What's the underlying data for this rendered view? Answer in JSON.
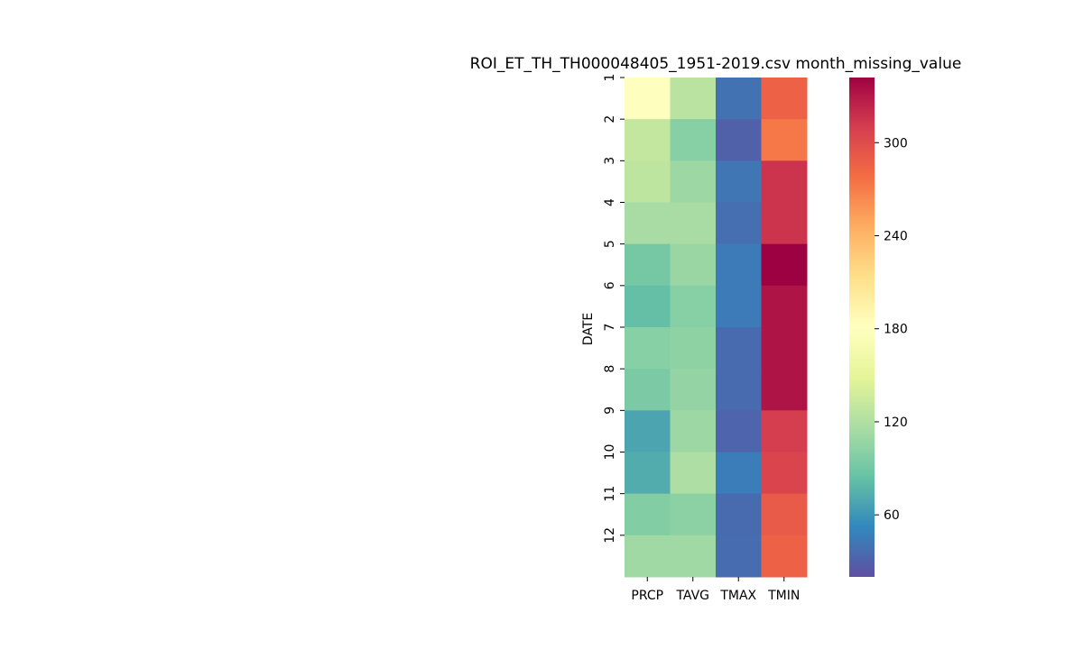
{
  "chart_data": {
    "type": "heatmap",
    "title": "ROI_ET_TH_TH000048405_1951-2019.csv month_missing_value",
    "ylabel": "DATE",
    "xlabel": "",
    "columns": [
      "PRCP",
      "TAVG",
      "TMAX",
      "TMIN"
    ],
    "rows": [
      "1",
      "2",
      "3",
      "4",
      "5",
      "6",
      "7",
      "8",
      "9",
      "10",
      "11",
      "12"
    ],
    "values": [
      [
        180,
        125,
        40,
        285
      ],
      [
        130,
        100,
        30,
        272
      ],
      [
        127,
        110,
        42,
        315
      ],
      [
        115,
        115,
        38,
        315
      ],
      [
        92,
        108,
        45,
        342
      ],
      [
        83,
        100,
        45,
        332
      ],
      [
        100,
        103,
        36,
        332
      ],
      [
        94,
        106,
        36,
        332
      ],
      [
        68,
        110,
        32,
        310
      ],
      [
        72,
        118,
        46,
        305
      ],
      [
        98,
        102,
        36,
        290
      ],
      [
        112,
        112,
        37,
        285
      ]
    ],
    "colorbar": {
      "colormap": "Spectral_r",
      "range": [
        20,
        342
      ],
      "ticks": [
        60,
        120,
        180,
        240,
        300
      ]
    }
  }
}
